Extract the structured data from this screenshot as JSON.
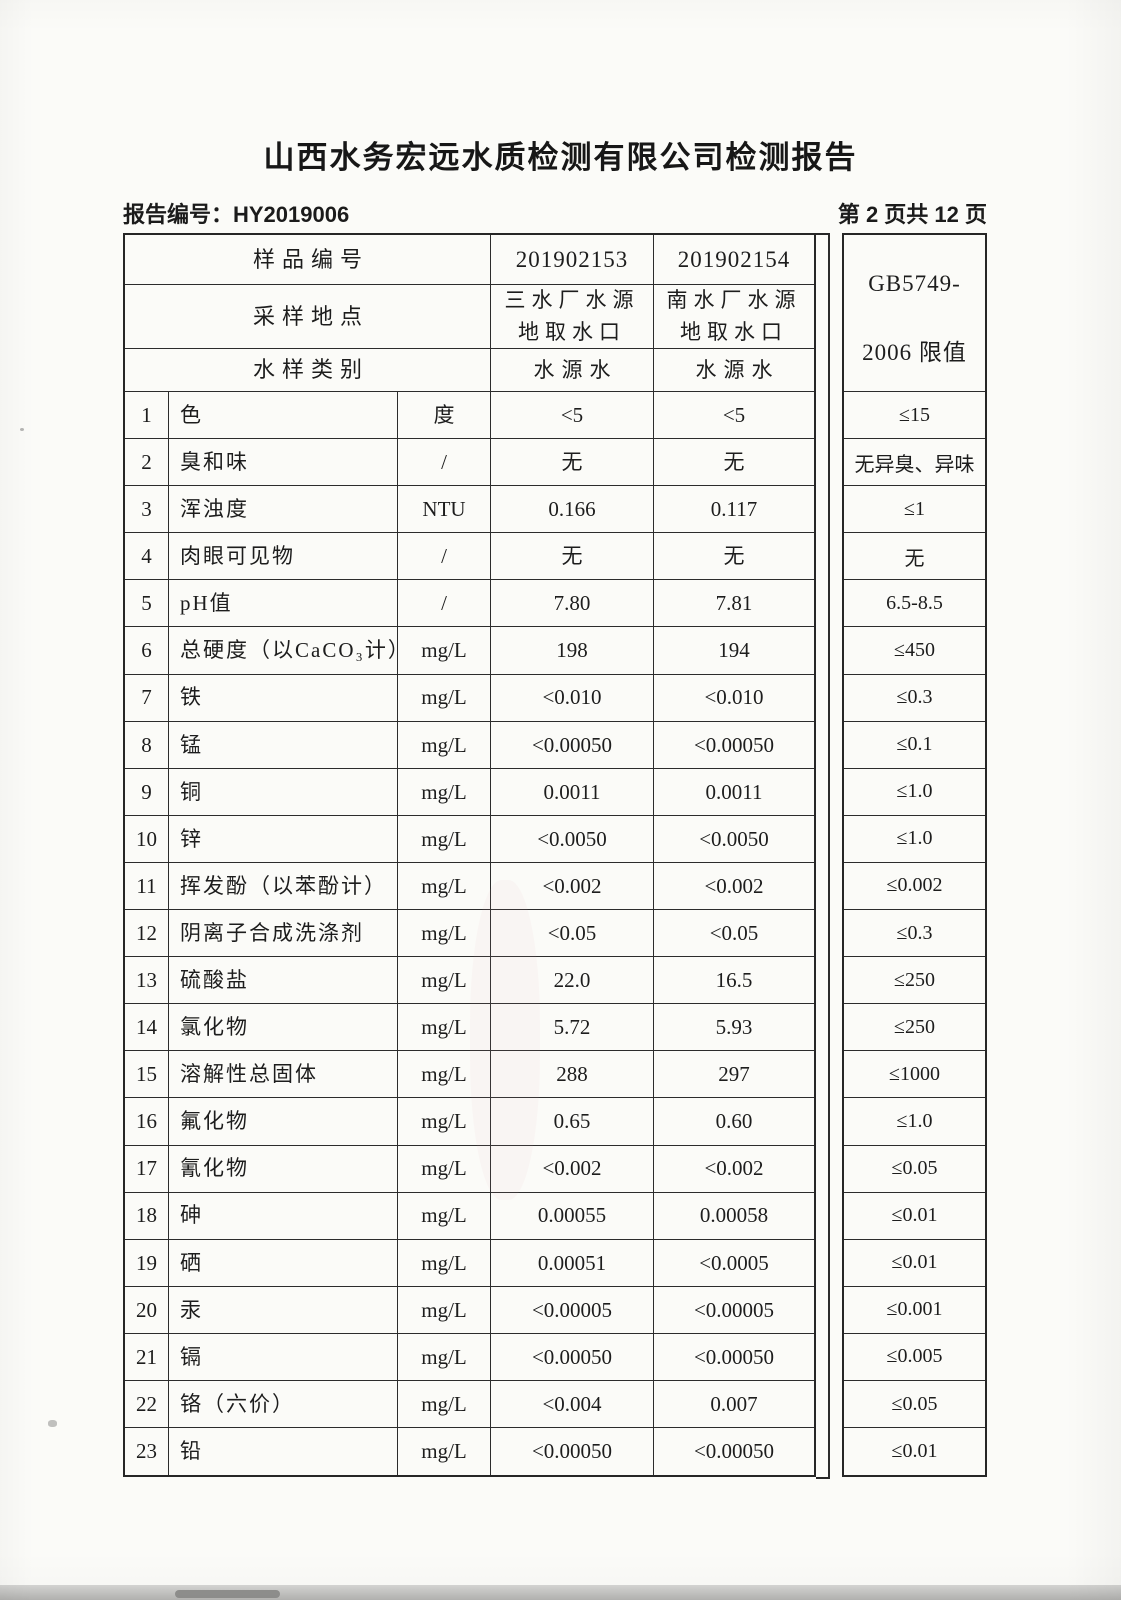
{
  "page": {
    "title": "山西水务宏远水质检测有限公司检测报告",
    "report_no_label": "报告编号：HY2019006",
    "page_indicator": "第 2 页共 12 页"
  },
  "table": {
    "header": {
      "sample_no_label": "样品编号",
      "sample_no_1": "201902153",
      "sample_no_2": "201902154",
      "site_label": "采样地点",
      "site_1": "三水厂水源地取水口",
      "site_2": "南水厂水源地取水口",
      "type_label": "水样类别",
      "type_1": "水源水",
      "type_2": "水源水",
      "limit_header_line1": "GB5749-",
      "limit_header_line2": "2006 限值"
    },
    "rows": [
      {
        "no": "1",
        "item": "色",
        "unit": "度",
        "v1": "<5",
        "v2": "<5",
        "limit": "≤15"
      },
      {
        "no": "2",
        "item": "臭和味",
        "unit": "/",
        "v1": "无",
        "v2": "无",
        "limit": "无异臭、异味"
      },
      {
        "no": "3",
        "item": "浑浊度",
        "unit": "NTU",
        "v1": "0.166",
        "v2": "0.117",
        "limit": "≤1"
      },
      {
        "no": "4",
        "item": "肉眼可见物",
        "unit": "/",
        "v1": "无",
        "v2": "无",
        "limit": "无"
      },
      {
        "no": "5",
        "item": "pH值",
        "unit": "/",
        "v1": "7.80",
        "v2": "7.81",
        "limit": "6.5-8.5"
      },
      {
        "no": "6",
        "item": "总硬度（以CaCO₃计）",
        "unit": "mg/L",
        "v1": "198",
        "v2": "194",
        "limit": "≤450"
      },
      {
        "no": "7",
        "item": "铁",
        "unit": "mg/L",
        "v1": "<0.010",
        "v2": "<0.010",
        "limit": "≤0.3"
      },
      {
        "no": "8",
        "item": "锰",
        "unit": "mg/L",
        "v1": "<0.00050",
        "v2": "<0.00050",
        "limit": "≤0.1"
      },
      {
        "no": "9",
        "item": "铜",
        "unit": "mg/L",
        "v1": "0.0011",
        "v2": "0.0011",
        "limit": "≤1.0"
      },
      {
        "no": "10",
        "item": "锌",
        "unit": "mg/L",
        "v1": "<0.0050",
        "v2": "<0.0050",
        "limit": "≤1.0"
      },
      {
        "no": "11",
        "item": "挥发酚（以苯酚计）",
        "unit": "mg/L",
        "v1": "<0.002",
        "v2": "<0.002",
        "limit": "≤0.002"
      },
      {
        "no": "12",
        "item": "阴离子合成洗涤剂",
        "unit": "mg/L",
        "v1": "<0.05",
        "v2": "<0.05",
        "limit": "≤0.3"
      },
      {
        "no": "13",
        "item": "硫酸盐",
        "unit": "mg/L",
        "v1": "22.0",
        "v2": "16.5",
        "limit": "≤250"
      },
      {
        "no": "14",
        "item": "氯化物",
        "unit": "mg/L",
        "v1": "5.72",
        "v2": "5.93",
        "limit": "≤250"
      },
      {
        "no": "15",
        "item": "溶解性总固体",
        "unit": "mg/L",
        "v1": "288",
        "v2": "297",
        "limit": "≤1000"
      },
      {
        "no": "16",
        "item": "氟化物",
        "unit": "mg/L",
        "v1": "0.65",
        "v2": "0.60",
        "limit": "≤1.0"
      },
      {
        "no": "17",
        "item": "氰化物",
        "unit": "mg/L",
        "v1": "<0.002",
        "v2": "<0.002",
        "limit": "≤0.05"
      },
      {
        "no": "18",
        "item": "砷",
        "unit": "mg/L",
        "v1": "0.00055",
        "v2": "0.00058",
        "limit": "≤0.01"
      },
      {
        "no": "19",
        "item": "硒",
        "unit": "mg/L",
        "v1": "0.00051",
        "v2": "<0.0005",
        "limit": "≤0.01"
      },
      {
        "no": "20",
        "item": "汞",
        "unit": "mg/L",
        "v1": "<0.00005",
        "v2": "<0.00005",
        "limit": "≤0.001"
      },
      {
        "no": "21",
        "item": "镉",
        "unit": "mg/L",
        "v1": "<0.00050",
        "v2": "<0.00050",
        "limit": "≤0.005"
      },
      {
        "no": "22",
        "item": "铬（六价）",
        "unit": "mg/L",
        "v1": "<0.004",
        "v2": "0.007",
        "limit": "≤0.05"
      },
      {
        "no": "23",
        "item": "铅",
        "unit": "mg/L",
        "v1": "<0.00050",
        "v2": "<0.00050",
        "limit": "≤0.01"
      }
    ]
  }
}
